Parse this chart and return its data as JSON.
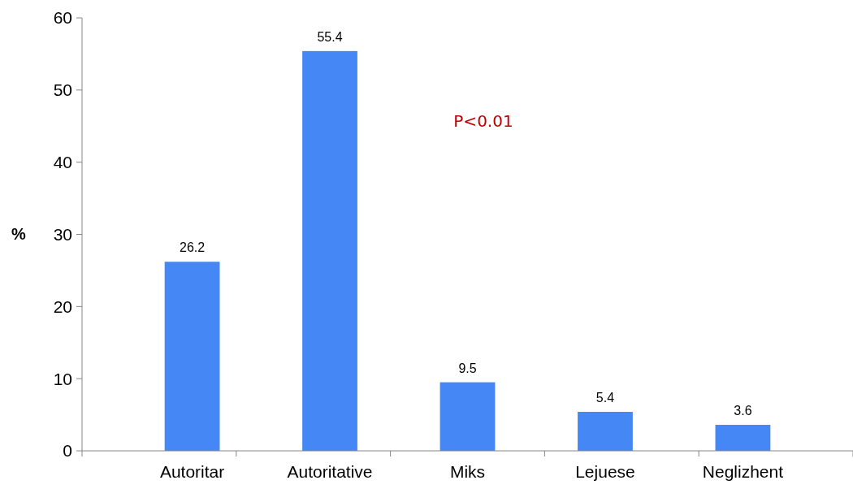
{
  "chart_data": {
    "type": "bar",
    "categories": [
      "Autoritar",
      "Autoritative",
      "Miks",
      "Lejuese",
      "Neglizhent"
    ],
    "values": [
      26.2,
      55.4,
      9.5,
      5.4,
      3.6
    ],
    "color": "#4487f5",
    "ylabel": "%",
    "ylim": [
      0,
      60
    ],
    "yticks": [
      0,
      10,
      20,
      30,
      40,
      50,
      60
    ],
    "data_labels": true,
    "grid": false,
    "annotations": [
      "P<0.01"
    ]
  }
}
